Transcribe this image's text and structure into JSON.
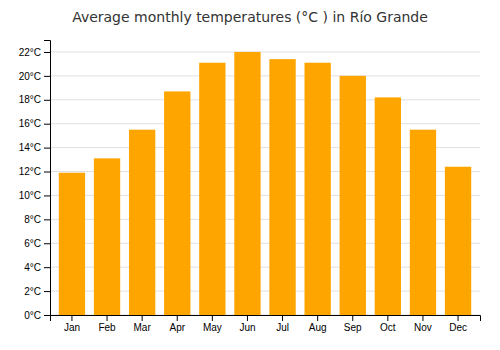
{
  "chart_data": {
    "type": "bar",
    "title": "Average monthly temperatures (°C ) in Río Grande",
    "categories": [
      "Jan",
      "Feb",
      "Mar",
      "Apr",
      "May",
      "Jun",
      "Jul",
      "Aug",
      "Sep",
      "Oct",
      "Nov",
      "Dec"
    ],
    "values": [
      11.9,
      13.1,
      15.5,
      18.7,
      21.1,
      22.0,
      21.4,
      21.1,
      20.0,
      18.2,
      15.5,
      12.4
    ],
    "color": "#FFA500",
    "ylim": [
      0,
      23
    ],
    "yticks": [
      {
        "value": 0,
        "label": "0°C"
      },
      {
        "value": 2,
        "label": "2°C"
      },
      {
        "value": 4,
        "label": "4°C"
      },
      {
        "value": 6,
        "label": "6°C"
      },
      {
        "value": 8,
        "label": "8°C"
      },
      {
        "value": 10,
        "label": "10°C"
      },
      {
        "value": 12,
        "label": "12°C"
      },
      {
        "value": 14,
        "label": "14°C"
      },
      {
        "value": 16,
        "label": "16°C"
      },
      {
        "value": 18,
        "label": "18°C"
      },
      {
        "value": 20,
        "label": "20°C"
      },
      {
        "value": 22,
        "label": "22°C"
      }
    ],
    "grid": true
  }
}
